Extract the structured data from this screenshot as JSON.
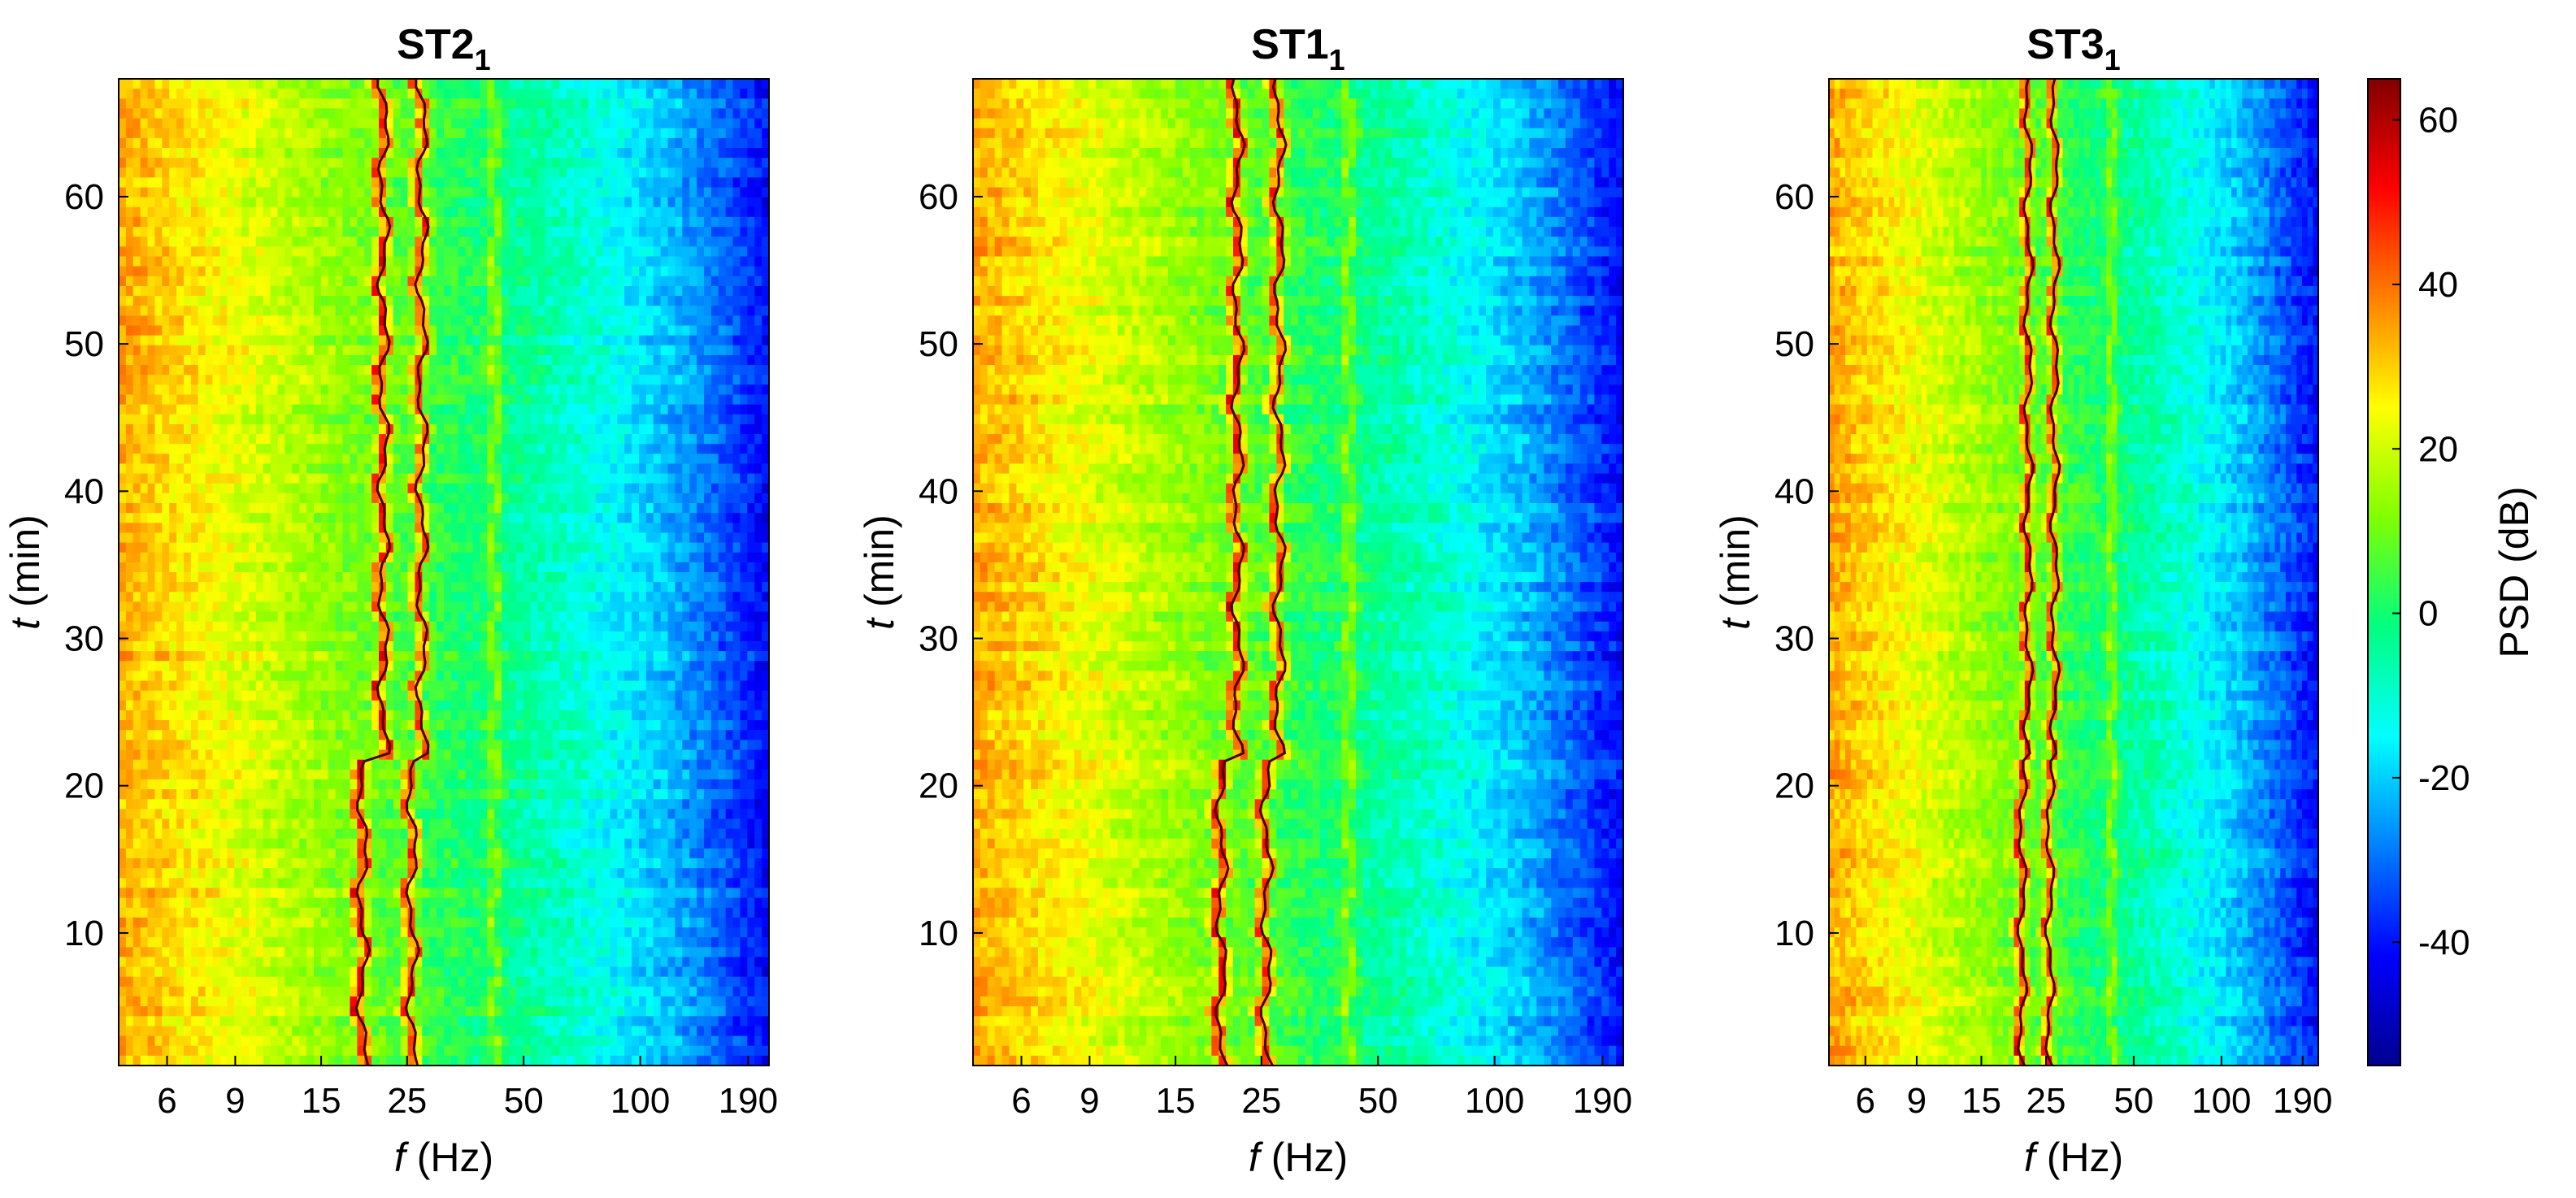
{
  "chart_data": [
    {
      "type": "heatmap",
      "title": "ST2",
      "title_subscript": "1",
      "xlabel_symbol": "f",
      "xlabel_unit": "(Hz)",
      "ylabel_symbol": "t",
      "ylabel_unit": "(min)",
      "xscale": "log",
      "xlim": [
        4.5,
        215
      ],
      "ylim": [
        1,
        68
      ],
      "xticks": [
        6,
        9,
        15,
        25,
        50,
        100,
        190
      ],
      "xticklabels": [
        "6",
        "9",
        "15",
        "25",
        "50",
        "100",
        "190"
      ],
      "yticks": [
        10,
        20,
        30,
        40,
        50,
        60
      ],
      "yticklabels": [
        "10",
        "20",
        "30",
        "40",
        "50",
        "60"
      ],
      "ridge_lines": [
        {
          "name": "lower resonance",
          "f_start_hz": 19,
          "f_end_hz": 21.5,
          "t_split_min": 22
        },
        {
          "name": "upper resonance",
          "f_start_hz": 25.5,
          "f_end_hz": 27,
          "t_split_min": 22
        }
      ]
    },
    {
      "type": "heatmap",
      "title": "ST1",
      "title_subscript": "1",
      "xlabel_symbol": "f",
      "xlabel_unit": "(Hz)",
      "ylabel_symbol": "t",
      "ylabel_unit": "(min)",
      "xscale": "log",
      "xlim": [
        4.5,
        215
      ],
      "ylim": [
        1,
        68
      ],
      "xticks": [
        6,
        9,
        15,
        25,
        50,
        100,
        190
      ],
      "xticklabels": [
        "6",
        "9",
        "15",
        "25",
        "50",
        "100",
        "190"
      ],
      "yticks": [
        10,
        20,
        30,
        40,
        50,
        60
      ],
      "yticklabels": [
        "10",
        "20",
        "30",
        "40",
        "50",
        "60"
      ],
      "ridge_lines": [
        {
          "name": "lower resonance",
          "f_start_hz": 19.5,
          "f_end_hz": 21.5,
          "t_split_min": 22
        },
        {
          "name": "upper resonance",
          "f_start_hz": 25.5,
          "f_end_hz": 27.5,
          "t_split_min": 22
        }
      ]
    },
    {
      "type": "heatmap",
      "title": "ST3",
      "title_subscript": "1",
      "xlabel_symbol": "f",
      "xlabel_unit": "(Hz)",
      "ylabel_symbol": "t",
      "ylabel_unit": "(min)",
      "xscale": "log",
      "xlim": [
        4.5,
        215
      ],
      "ylim": [
        1,
        68
      ],
      "xticks": [
        6,
        9,
        15,
        25,
        50,
        100,
        190
      ],
      "xticklabels": [
        "6",
        "9",
        "15",
        "25",
        "50",
        "100",
        "190"
      ],
      "yticks": [
        10,
        20,
        30,
        40,
        50,
        60
      ],
      "yticklabels": [
        "10",
        "20",
        "30",
        "40",
        "50",
        "60"
      ],
      "ridge_lines": [
        {
          "name": "lower resonance",
          "f_start_hz": 20.5,
          "f_end_hz": 21.5,
          "t_split_min": 22
        },
        {
          "name": "upper resonance",
          "f_start_hz": 25.5,
          "f_end_hz": 26.5,
          "t_split_min": 22
        }
      ]
    }
  ],
  "colorbar": {
    "label": "PSD (dB)",
    "range": [
      -55,
      65
    ],
    "ticks": [
      -40,
      -20,
      0,
      20,
      40,
      60
    ],
    "ticklabels": [
      "-40",
      "-20",
      "0",
      "20",
      "40",
      "60"
    ],
    "colormap": [
      "#00008f",
      "#0000ff",
      "#0080ff",
      "#00ffff",
      "#00ff80",
      "#80ff00",
      "#ffff00",
      "#ff8000",
      "#ff0000",
      "#800000"
    ]
  }
}
